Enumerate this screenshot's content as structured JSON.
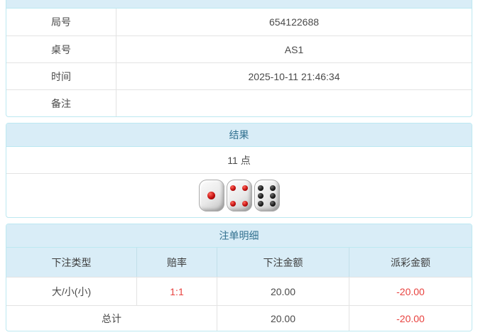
{
  "colors": {
    "panel-border": "#bce8f1",
    "header-bg": "#d9edf7",
    "header-text": "#31708f",
    "cell-border": "#e3e3e3",
    "text": "#4a4a4a",
    "red": "#e8423f"
  },
  "info_table": {
    "rows": [
      {
        "label": "局号",
        "value": "654122688"
      },
      {
        "label": "桌号",
        "value": "AS1"
      },
      {
        "label": "时间",
        "value": "2025-10-11 21:46:34"
      },
      {
        "label": "备注",
        "value": ""
      }
    ]
  },
  "result_panel": {
    "title": "结果",
    "points": "11 点",
    "dice": [
      {
        "value": 1,
        "color": "red"
      },
      {
        "value": 4,
        "color": "red"
      },
      {
        "value": 6,
        "color": "black"
      }
    ]
  },
  "bet_panel": {
    "title": "注单明细",
    "columns": [
      "下注类型",
      "赔率",
      "下注金额",
      "派彩金额"
    ],
    "rows": [
      {
        "type": "大/小(小)",
        "odds": "1:1",
        "bet": "20.00",
        "payout": "-20.00"
      }
    ],
    "total": {
      "label": "总计",
      "bet": "20.00",
      "payout": "-20.00"
    }
  }
}
